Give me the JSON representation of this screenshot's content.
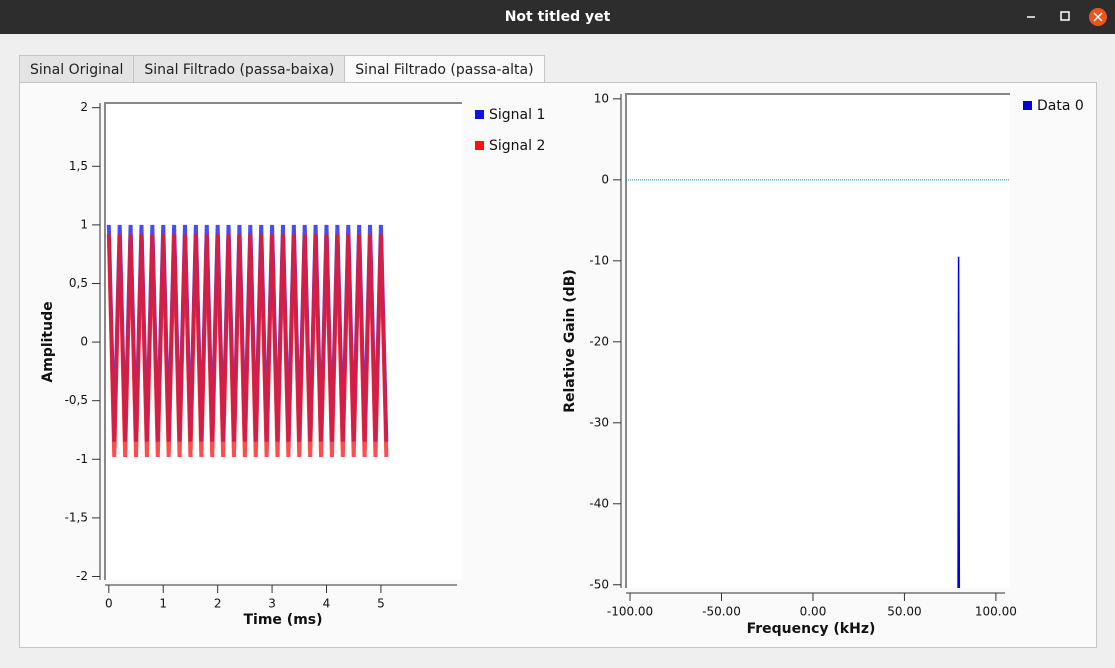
{
  "window": {
    "title": "Not titled yet"
  },
  "tabs": [
    "Sinal Original",
    "Sinal Filtrado (passa-baixa)",
    "Sinal Filtrado (passa-alta)"
  ],
  "active_tab": 2,
  "chart_data": [
    {
      "type": "line",
      "xlabel": "Time (ms)",
      "ylabel": "Amplitude",
      "x": [
        0,
        0.1,
        0.2,
        0.3,
        0.4,
        0.5,
        0.6,
        0.7,
        0.8,
        0.9,
        1,
        1.1,
        1.2,
        1.3,
        1.4,
        1.5,
        1.6,
        1.7,
        1.8,
        1.9,
        2,
        2.1,
        2.2,
        2.3,
        2.4,
        2.5,
        2.6,
        2.7,
        2.8,
        2.9,
        3,
        3.1,
        3.2,
        3.3,
        3.4,
        3.5,
        3.6,
        3.7,
        3.8,
        3.9,
        4,
        4.1,
        4.2,
        4.3,
        4.4,
        4.5,
        4.6,
        4.7,
        4.8,
        4.9,
        5,
        5.1
      ],
      "series": [
        {
          "name": "Signal 1",
          "color": "#1010e8",
          "values": [
            1,
            -0.85,
            1,
            -0.85,
            1,
            -0.85,
            1,
            -0.85,
            1,
            -0.85,
            1,
            -0.85,
            1,
            -0.85,
            1,
            -0.85,
            1,
            -0.85,
            1,
            -0.85,
            1,
            -0.85,
            1,
            -0.85,
            1,
            -0.85,
            1,
            -0.85,
            1,
            -0.85,
            1,
            -0.85,
            1,
            -0.85,
            1,
            -0.85,
            1,
            -0.85,
            1,
            -0.85,
            1,
            -0.85,
            1,
            -0.85,
            1,
            -0.85,
            1,
            -0.85,
            1,
            -0.85,
            1,
            -0.85
          ]
        },
        {
          "name": "Signal 2",
          "color": "#ff1010",
          "values": [
            0.92,
            -0.98,
            0.92,
            -0.98,
            0.92,
            -0.98,
            0.92,
            -0.98,
            0.92,
            -0.98,
            0.92,
            -0.98,
            0.92,
            -0.98,
            0.92,
            -0.98,
            0.92,
            -0.98,
            0.92,
            -0.98,
            0.92,
            -0.98,
            0.92,
            -0.98,
            0.92,
            -0.98,
            0.92,
            -0.98,
            0.92,
            -0.98,
            0.92,
            -0.98,
            0.92,
            -0.98,
            0.92,
            -0.98,
            0.92,
            -0.98,
            0.92,
            -0.98,
            0.92,
            -0.98,
            0.92,
            -0.98,
            0.92,
            -0.98,
            0.92,
            -0.98,
            0.92,
            -0.98,
            0.92,
            -0.98
          ]
        }
      ],
      "xlim": [
        -0.07,
        6.49
      ],
      "xticks": [
        0,
        1,
        2,
        3,
        4,
        5
      ],
      "ylim": [
        -2.03,
        2.04
      ],
      "yticks": [
        2,
        {
          "value": 1.5,
          "label": "1,5"
        },
        1,
        {
          "value": 0.5,
          "label": "0,5"
        },
        0,
        {
          "value": -0.5,
          "label": "-0,5"
        },
        -1,
        {
          "value": -1.5,
          "label": "-1,5"
        },
        -2
      ]
    },
    {
      "type": "line",
      "xlabel": "Frequency (kHz)",
      "ylabel": "Relative Gain (dB)",
      "x": [
        79.3,
        79.6,
        80.0
      ],
      "series": [
        {
          "name": "Data 0",
          "color": "#0000e0",
          "values": [
            -50.4,
            -9.5,
            -50.4
          ]
        }
      ],
      "reference_line": 0,
      "reference_color": "#2a8a9a",
      "xlim": [
        -102.2,
        107.7
      ],
      "xticks": [
        {
          "value": -100,
          "label": "-100.00"
        },
        {
          "value": -50,
          "label": "-50.00"
        },
        {
          "value": 0,
          "label": "0.00"
        },
        {
          "value": 50,
          "label": "50.00"
        },
        {
          "value": 100,
          "label": "100.00"
        }
      ],
      "ylim": [
        -50.4,
        10.6
      ],
      "yticks": [
        10,
        0,
        -10,
        -20,
        -30,
        -40,
        -50
      ]
    }
  ]
}
